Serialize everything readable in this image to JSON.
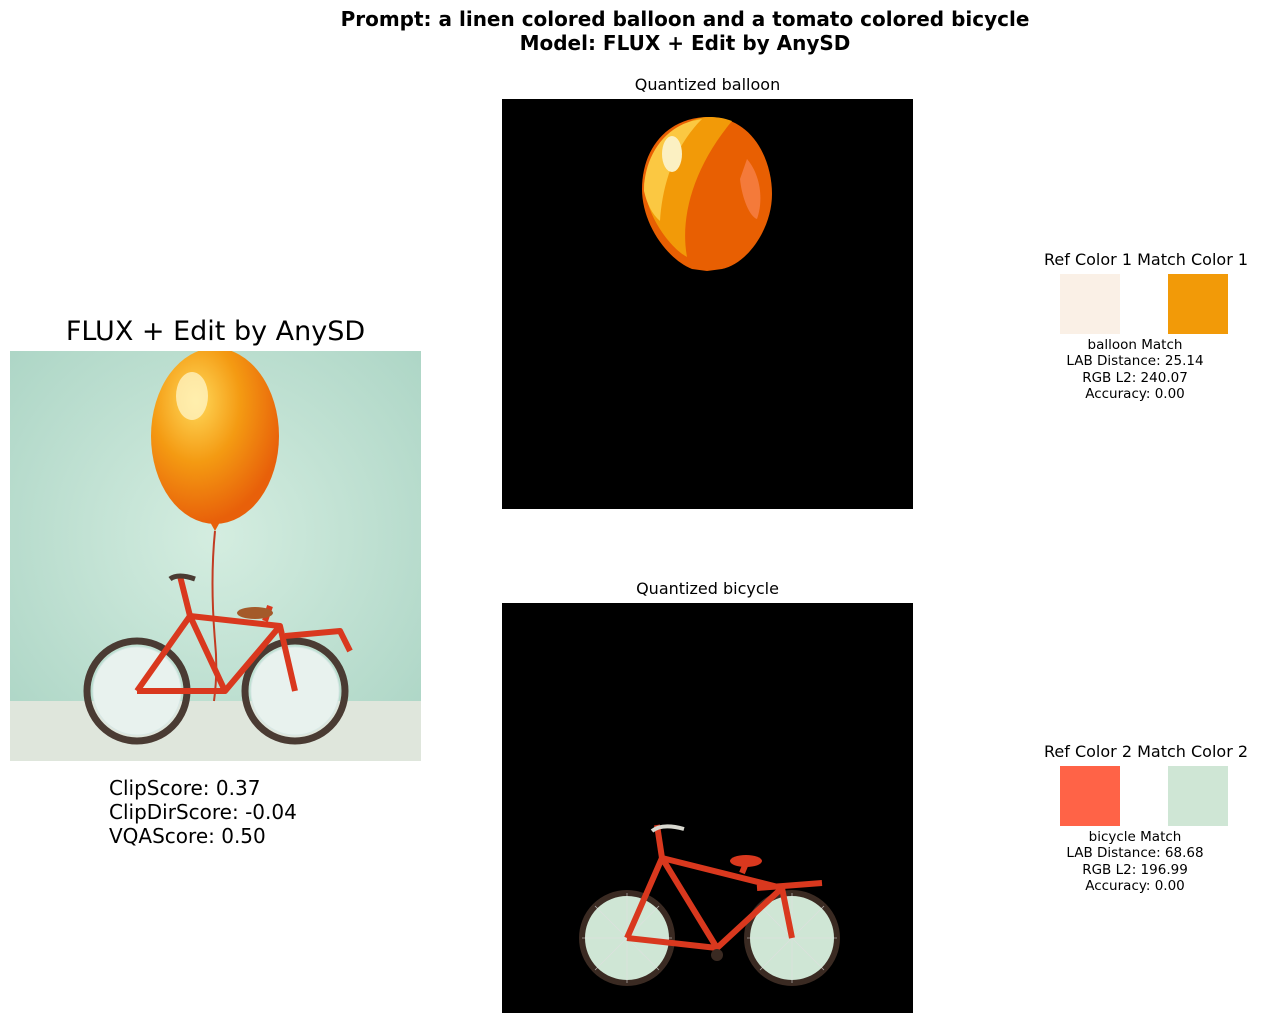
{
  "figure": {
    "title_line1": "Prompt: a linen colored balloon and a tomato colored bicycle",
    "title_line2": "Model: FLUX + Edit by AnySD"
  },
  "main_panel": {
    "title": "FLUX + Edit by AnySD",
    "metrics": [
      "ClipScore: 0.37",
      "ClipDirScore: -0.04",
      "VQAScore: 0.50"
    ]
  },
  "quantized": [
    {
      "title": "Quantized balloon"
    },
    {
      "title": "Quantized bicycle"
    }
  ],
  "color_matches": [
    {
      "header": "Ref Color 1 Match Color 1",
      "ref_color": "#FAF0E6",
      "match_color": "#F29A08",
      "label": "balloon Match",
      "lab_distance": "LAB Distance: 25.14",
      "rgb_l2": "RGB L2: 240.07",
      "accuracy": "Accuracy: 0.00"
    },
    {
      "header": "Ref Color 2 Match Color 2",
      "ref_color": "#FF6347",
      "match_color": "#CFE6D5",
      "label": "bicycle Match",
      "lab_distance": "LAB Distance: 68.68",
      "rgb_l2": "RGB L2: 196.99",
      "accuracy": "Accuracy: 0.00"
    }
  ]
}
